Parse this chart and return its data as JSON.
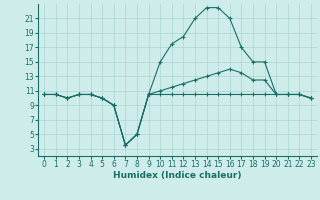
{
  "xlabel": "Humidex (Indice chaleur)",
  "background_color": "#ceecea",
  "grid_color": "#aed4d2",
  "line_color": "#1a6e68",
  "xlim": [
    -0.5,
    23.5
  ],
  "ylim": [
    2,
    23
  ],
  "yticks": [
    3,
    5,
    7,
    9,
    11,
    13,
    15,
    17,
    19,
    21
  ],
  "xticks": [
    0,
    1,
    2,
    3,
    4,
    5,
    6,
    7,
    8,
    9,
    10,
    11,
    12,
    13,
    14,
    15,
    16,
    17,
    18,
    19,
    20,
    21,
    22,
    23
  ],
  "line1_x": [
    0,
    1,
    2,
    3,
    4,
    5,
    6,
    7,
    8,
    9,
    10,
    11,
    12,
    13,
    14,
    15,
    16,
    17,
    18,
    19,
    20,
    21,
    22,
    23
  ],
  "line1_y": [
    10.5,
    10.5,
    10.0,
    10.5,
    10.5,
    10.0,
    9.0,
    3.5,
    5.0,
    10.5,
    10.5,
    10.5,
    10.5,
    10.5,
    10.5,
    10.5,
    10.5,
    10.5,
    10.5,
    10.5,
    10.5,
    10.5,
    10.5,
    10.0
  ],
  "line2_x": [
    0,
    1,
    2,
    3,
    4,
    5,
    6,
    7,
    8,
    9,
    10,
    11,
    12,
    13,
    14,
    15,
    16,
    17,
    18,
    19,
    20,
    21,
    22,
    23
  ],
  "line2_y": [
    10.5,
    10.5,
    10.0,
    10.5,
    10.5,
    10.0,
    9.0,
    3.5,
    5.0,
    10.5,
    11.0,
    11.5,
    12.0,
    12.5,
    13.0,
    13.5,
    14.0,
    13.5,
    12.5,
    12.5,
    10.5,
    10.5,
    10.5,
    10.0
  ],
  "line3_x": [
    0,
    1,
    2,
    3,
    4,
    5,
    6,
    7,
    8,
    9,
    10,
    11,
    12,
    13,
    14,
    15,
    16,
    17,
    18,
    19,
    20,
    21,
    22,
    23
  ],
  "line3_y": [
    10.5,
    10.5,
    10.0,
    10.5,
    10.5,
    10.0,
    9.0,
    3.5,
    5.0,
    10.5,
    15.0,
    17.5,
    18.5,
    21.0,
    22.5,
    22.5,
    21.0,
    17.0,
    15.0,
    15.0,
    10.5,
    10.5,
    10.5,
    10.0
  ],
  "tick_fontsize": 5.5,
  "xlabel_fontsize": 6.5,
  "marker": "+"
}
